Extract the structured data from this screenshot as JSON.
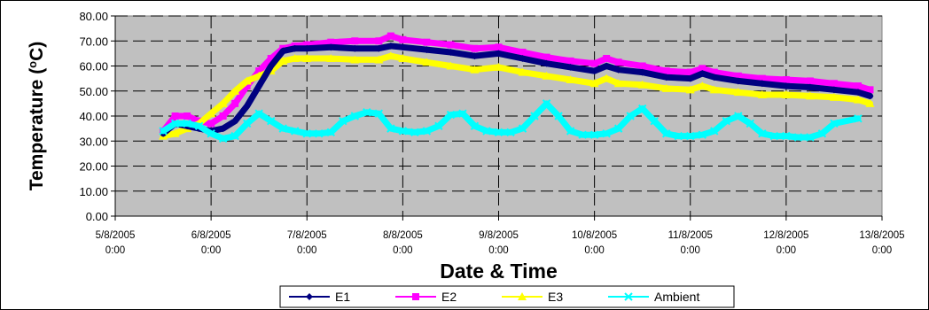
{
  "chart_data": {
    "type": "line",
    "title": "",
    "xlabel": "Date & Time",
    "ylabel_main": "Temperature (",
    "ylabel_sup": "o",
    "ylabel_end": "C)",
    "ylim": [
      0,
      80
    ],
    "ytick_labels": [
      "0.00",
      "10.00",
      "20.00",
      "30.00",
      "40.00",
      "50.00",
      "60.00",
      "70.00",
      "80.00"
    ],
    "xlim": [
      "2005-08-05 00:00",
      "2005-08-13 00:00"
    ],
    "xtick_labels": [
      {
        "date": "5/8/2005",
        "time": "0:00"
      },
      {
        "date": "6/8/2005",
        "time": "0:00"
      },
      {
        "date": "7/8/2005",
        "time": "0:00"
      },
      {
        "date": "8/8/2005",
        "time": "0:00"
      },
      {
        "date": "9/8/2005",
        "time": "0:00"
      },
      {
        "date": "10/8/2005",
        "time": "0:00"
      },
      {
        "date": "11/8/2005",
        "time": "0:00"
      },
      {
        "date": "12/8/2005",
        "time": "0:00"
      },
      {
        "date": "13/8/2005",
        "time": "0:00"
      }
    ],
    "grid": true,
    "legend_position": "bottom",
    "plot_background": "#c0c0c0",
    "series": [
      {
        "name": "E1",
        "color": "#000080",
        "marker": "diamond",
        "points": [
          [
            "2005-08-05 12:00",
            33
          ],
          [
            "2005-08-05 15:00",
            37
          ],
          [
            "2005-08-05 18:00",
            36
          ],
          [
            "2005-08-05 21:00",
            35
          ],
          [
            "2005-08-06 00:00",
            34
          ],
          [
            "2005-08-06 03:00",
            35
          ],
          [
            "2005-08-06 06:00",
            38
          ],
          [
            "2005-08-06 09:00",
            44
          ],
          [
            "2005-08-06 12:00",
            52
          ],
          [
            "2005-08-06 15:00",
            60
          ],
          [
            "2005-08-06 18:00",
            66
          ],
          [
            "2005-08-06 21:00",
            67
          ],
          [
            "2005-08-07 00:00",
            67
          ],
          [
            "2005-08-07 06:00",
            67.5
          ],
          [
            "2005-08-07 12:00",
            67
          ],
          [
            "2005-08-07 18:00",
            67
          ],
          [
            "2005-08-07 21:00",
            68
          ],
          [
            "2005-08-08 00:00",
            67.5
          ],
          [
            "2005-08-08 06:00",
            66.5
          ],
          [
            "2005-08-08 12:00",
            65.5
          ],
          [
            "2005-08-08 18:00",
            64
          ],
          [
            "2005-08-09 00:00",
            65
          ],
          [
            "2005-08-09 06:00",
            63
          ],
          [
            "2005-08-09 12:00",
            61
          ],
          [
            "2005-08-09 18:00",
            59.5
          ],
          [
            "2005-08-10 00:00",
            58
          ],
          [
            "2005-08-10 03:00",
            60
          ],
          [
            "2005-08-10 06:00",
            58.5
          ],
          [
            "2005-08-10 12:00",
            57.5
          ],
          [
            "2005-08-10 18:00",
            55.5
          ],
          [
            "2005-08-11 00:00",
            55
          ],
          [
            "2005-08-11 03:00",
            57
          ],
          [
            "2005-08-11 06:00",
            55.5
          ],
          [
            "2005-08-11 12:00",
            54
          ],
          [
            "2005-08-11 18:00",
            53
          ],
          [
            "2005-08-12 00:00",
            52
          ],
          [
            "2005-08-12 06:00",
            51.5
          ],
          [
            "2005-08-12 12:00",
            50.5
          ],
          [
            "2005-08-12 18:00",
            49.5
          ],
          [
            "2005-08-12 21:00",
            48
          ]
        ]
      },
      {
        "name": "E2",
        "color": "#ff00ff",
        "marker": "square",
        "points": [
          [
            "2005-08-05 12:00",
            34
          ],
          [
            "2005-08-05 15:00",
            40
          ],
          [
            "2005-08-05 18:00",
            40
          ],
          [
            "2005-08-05 21:00",
            38
          ],
          [
            "2005-08-06 00:00",
            37
          ],
          [
            "2005-08-06 03:00",
            40
          ],
          [
            "2005-08-06 06:00",
            45
          ],
          [
            "2005-08-06 09:00",
            52
          ],
          [
            "2005-08-06 12:00",
            58
          ],
          [
            "2005-08-06 15:00",
            63
          ],
          [
            "2005-08-06 18:00",
            67
          ],
          [
            "2005-08-06 21:00",
            68
          ],
          [
            "2005-08-07 00:00",
            68.5
          ],
          [
            "2005-08-07 06:00",
            69.5
          ],
          [
            "2005-08-07 12:00",
            70
          ],
          [
            "2005-08-07 18:00",
            70
          ],
          [
            "2005-08-07 21:00",
            72
          ],
          [
            "2005-08-08 00:00",
            70.5
          ],
          [
            "2005-08-08 06:00",
            69.5
          ],
          [
            "2005-08-08 12:00",
            68.5
          ],
          [
            "2005-08-08 18:00",
            67
          ],
          [
            "2005-08-09 00:00",
            67.5
          ],
          [
            "2005-08-09 06:00",
            65.5
          ],
          [
            "2005-08-09 12:00",
            63.5
          ],
          [
            "2005-08-09 18:00",
            62
          ],
          [
            "2005-08-10 00:00",
            61
          ],
          [
            "2005-08-10 03:00",
            63
          ],
          [
            "2005-08-10 06:00",
            61.5
          ],
          [
            "2005-08-10 12:00",
            60
          ],
          [
            "2005-08-10 18:00",
            58
          ],
          [
            "2005-08-11 00:00",
            57.5
          ],
          [
            "2005-08-11 03:00",
            59
          ],
          [
            "2005-08-11 06:00",
            57.5
          ],
          [
            "2005-08-11 12:00",
            56
          ],
          [
            "2005-08-11 18:00",
            55
          ],
          [
            "2005-08-12 00:00",
            54.5
          ],
          [
            "2005-08-12 06:00",
            54
          ],
          [
            "2005-08-12 12:00",
            53
          ],
          [
            "2005-08-12 18:00",
            52
          ],
          [
            "2005-08-12 21:00",
            50.5
          ]
        ]
      },
      {
        "name": "E3",
        "color": "#ffff00",
        "marker": "triangle",
        "points": [
          [
            "2005-08-05 12:00",
            32
          ],
          [
            "2005-08-05 15:00",
            33
          ],
          [
            "2005-08-05 18:00",
            35
          ],
          [
            "2005-08-05 21:00",
            37
          ],
          [
            "2005-08-06 00:00",
            41
          ],
          [
            "2005-08-06 03:00",
            45
          ],
          [
            "2005-08-06 06:00",
            50
          ],
          [
            "2005-08-06 09:00",
            54
          ],
          [
            "2005-08-06 12:00",
            56
          ],
          [
            "2005-08-06 15:00",
            58
          ],
          [
            "2005-08-06 18:00",
            62
          ],
          [
            "2005-08-06 21:00",
            63
          ],
          [
            "2005-08-07 00:00",
            63
          ],
          [
            "2005-08-07 06:00",
            63
          ],
          [
            "2005-08-07 12:00",
            62.5
          ],
          [
            "2005-08-07 18:00",
            62.5
          ],
          [
            "2005-08-07 21:00",
            64
          ],
          [
            "2005-08-08 00:00",
            63
          ],
          [
            "2005-08-08 06:00",
            61.5
          ],
          [
            "2005-08-08 12:00",
            60
          ],
          [
            "2005-08-08 18:00",
            58.5
          ],
          [
            "2005-08-09 00:00",
            59.5
          ],
          [
            "2005-08-09 06:00",
            57.5
          ],
          [
            "2005-08-09 12:00",
            56
          ],
          [
            "2005-08-09 18:00",
            54.5
          ],
          [
            "2005-08-10 00:00",
            53
          ],
          [
            "2005-08-10 03:00",
            55
          ],
          [
            "2005-08-10 06:00",
            53
          ],
          [
            "2005-08-10 12:00",
            52.5
          ],
          [
            "2005-08-10 18:00",
            51
          ],
          [
            "2005-08-11 00:00",
            50.5
          ],
          [
            "2005-08-11 03:00",
            52
          ],
          [
            "2005-08-11 06:00",
            50.5
          ],
          [
            "2005-08-11 12:00",
            49.5
          ],
          [
            "2005-08-11 18:00",
            48.5
          ],
          [
            "2005-08-12 00:00",
            48.5
          ],
          [
            "2005-08-12 06:00",
            48
          ],
          [
            "2005-08-12 12:00",
            47.5
          ],
          [
            "2005-08-12 18:00",
            46.5
          ],
          [
            "2005-08-12 21:00",
            45
          ]
        ]
      },
      {
        "name": "Ambient",
        "color": "#00ffff",
        "marker": "x",
        "points": [
          [
            "2005-08-05 12:00",
            34
          ],
          [
            "2005-08-05 15:00",
            37
          ],
          [
            "2005-08-05 18:00",
            37
          ],
          [
            "2005-08-05 21:00",
            36
          ],
          [
            "2005-08-06 00:00",
            33
          ],
          [
            "2005-08-06 03:00",
            31
          ],
          [
            "2005-08-06 06:00",
            32
          ],
          [
            "2005-08-06 09:00",
            37
          ],
          [
            "2005-08-06 12:00",
            41
          ],
          [
            "2005-08-06 15:00",
            38
          ],
          [
            "2005-08-06 18:00",
            35
          ],
          [
            "2005-08-06 21:00",
            34
          ],
          [
            "2005-08-07 00:00",
            33
          ],
          [
            "2005-08-07 03:00",
            33
          ],
          [
            "2005-08-07 06:00",
            33.5
          ],
          [
            "2005-08-07 09:00",
            38
          ],
          [
            "2005-08-07 12:00",
            40
          ],
          [
            "2005-08-07 15:00",
            41.5
          ],
          [
            "2005-08-07 18:00",
            41
          ],
          [
            "2005-08-07 21:00",
            35
          ],
          [
            "2005-08-08 00:00",
            34
          ],
          [
            "2005-08-08 03:00",
            33.5
          ],
          [
            "2005-08-08 06:00",
            34
          ],
          [
            "2005-08-08 09:00",
            36
          ],
          [
            "2005-08-08 12:00",
            40.5
          ],
          [
            "2005-08-08 15:00",
            41
          ],
          [
            "2005-08-08 18:00",
            36
          ],
          [
            "2005-08-08 21:00",
            34
          ],
          [
            "2005-08-09 00:00",
            33.5
          ],
          [
            "2005-08-09 03:00",
            33.5
          ],
          [
            "2005-08-09 06:00",
            35
          ],
          [
            "2005-08-09 09:00",
            40
          ],
          [
            "2005-08-09 12:00",
            45
          ],
          [
            "2005-08-09 15:00",
            40
          ],
          [
            "2005-08-09 18:00",
            34
          ],
          [
            "2005-08-09 21:00",
            32.5
          ],
          [
            "2005-08-10 00:00",
            32.5
          ],
          [
            "2005-08-10 03:00",
            33
          ],
          [
            "2005-08-10 06:00",
            35
          ],
          [
            "2005-08-10 09:00",
            40
          ],
          [
            "2005-08-10 12:00",
            43
          ],
          [
            "2005-08-10 15:00",
            38
          ],
          [
            "2005-08-10 18:00",
            33
          ],
          [
            "2005-08-10 21:00",
            32
          ],
          [
            "2005-08-11 00:00",
            32
          ],
          [
            "2005-08-11 03:00",
            32.5
          ],
          [
            "2005-08-11 06:00",
            34
          ],
          [
            "2005-08-11 09:00",
            38
          ],
          [
            "2005-08-11 12:00",
            40
          ],
          [
            "2005-08-11 15:00",
            37
          ],
          [
            "2005-08-11 18:00",
            33
          ],
          [
            "2005-08-11 21:00",
            32
          ],
          [
            "2005-08-12 00:00",
            32
          ],
          [
            "2005-08-12 03:00",
            31.5
          ],
          [
            "2005-08-12 06:00",
            31.5
          ],
          [
            "2005-08-12 09:00",
            33
          ],
          [
            "2005-08-12 12:00",
            37
          ],
          [
            "2005-08-12 18:00",
            39
          ]
        ]
      }
    ]
  }
}
